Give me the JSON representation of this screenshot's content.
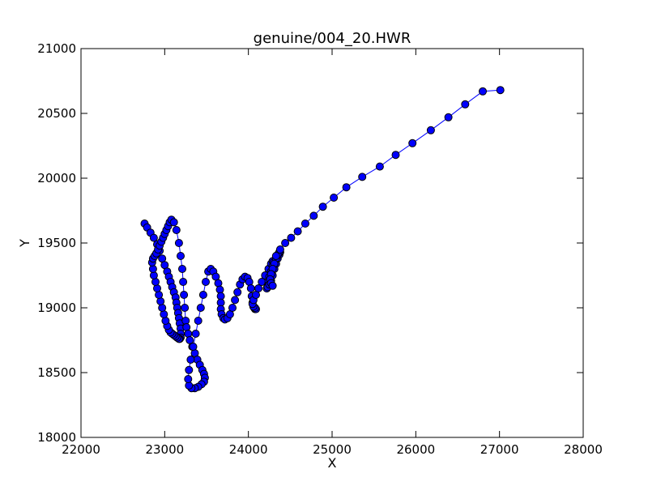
{
  "chart_data": {
    "type": "line",
    "title": "genuine/004_20.HWR",
    "xlabel": "X",
    "ylabel": "Y",
    "xlim": [
      22000,
      28000
    ],
    "ylim": [
      18000,
      21000
    ],
    "xticks": [
      "22000",
      "23000",
      "24000",
      "25000",
      "26000",
      "27000",
      "28000"
    ],
    "yticks": [
      "18000",
      "18500",
      "19000",
      "19500",
      "20000",
      "20500",
      "21000"
    ],
    "grid": false,
    "legend": "none",
    "line_color": "#0000ff",
    "marker_color": "#0000ff",
    "marker_edge": "#000000",
    "series": [
      {
        "x": [
          22760,
          22790,
          22830,
          22870,
          22910,
          22940,
          22970,
          23000,
          23030,
          23050,
          23070,
          23090,
          23110,
          23130,
          23140,
          23150,
          23160,
          23170,
          23180,
          23190,
          23190,
          23190,
          23180,
          23170,
          23150,
          23130,
          23110,
          23090,
          23070,
          23050,
          23030,
          23010,
          22990,
          22970,
          22950,
          22930,
          22910,
          22890,
          22870,
          22860,
          22850,
          22860,
          22880,
          22900,
          22920,
          22940,
          22960,
          22980,
          23000,
          23020,
          23040,
          23060,
          23080,
          23110,
          23140,
          23170,
          23190,
          23210,
          23220,
          23230,
          23240,
          23250,
          23260,
          23280,
          23300,
          23330,
          23360,
          23390,
          23420,
          23450,
          23470,
          23480,
          23470,
          23440,
          23400,
          23360,
          23320,
          23290,
          23280,
          23290,
          23310,
          23340,
          23370,
          23400,
          23430,
          23460,
          23490,
          23520,
          23550,
          23580,
          23610,
          23640,
          23660,
          23670,
          23670,
          23670,
          23680,
          23700,
          23720,
          23750,
          23780,
          23810,
          23840,
          23870,
          23900,
          23930,
          23960,
          23990,
          24010,
          24030,
          24040,
          24050,
          24060,
          24070,
          24080,
          24090,
          24080,
          24060,
          24050,
          24060,
          24090,
          24120,
          24160,
          24200,
          24240,
          24270,
          24290,
          24300,
          24290,
          24270,
          24250,
          24240,
          24230,
          24220,
          24220,
          24230,
          24250,
          24270,
          24290,
          24310,
          24330,
          24350,
          24370,
          24380,
          24370,
          24350,
          24330,
          24310,
          24290,
          24270,
          24260,
          24270,
          24290,
          24330,
          24380,
          24440,
          24510,
          24590,
          24680,
          24780,
          24890,
          25020,
          25170,
          25360,
          25570,
          25760,
          25960,
          26180,
          26390,
          26590,
          26800,
          27010
        ],
        "y": [
          19650,
          19620,
          19580,
          19540,
          19490,
          19440,
          19380,
          19330,
          19280,
          19240,
          19200,
          19160,
          19120,
          19080,
          19040,
          19000,
          18960,
          18920,
          18880,
          18840,
          18800,
          18770,
          18760,
          18760,
          18770,
          18780,
          18790,
          18800,
          18810,
          18830,
          18860,
          18900,
          18950,
          19000,
          19050,
          19100,
          19150,
          19200,
          19250,
          19300,
          19350,
          19380,
          19400,
          19420,
          19450,
          19480,
          19510,
          19540,
          19570,
          19600,
          19630,
          19660,
          19680,
          19660,
          19600,
          19500,
          19400,
          19300,
          19200,
          19100,
          19000,
          18900,
          18850,
          18800,
          18750,
          18700,
          18650,
          18600,
          18560,
          18520,
          18490,
          18460,
          18430,
          18410,
          18390,
          18380,
          18380,
          18400,
          18450,
          18520,
          18600,
          18700,
          18800,
          18900,
          19000,
          19100,
          19200,
          19280,
          19300,
          19280,
          19240,
          19190,
          19140,
          19090,
          19040,
          18990,
          18950,
          18920,
          18910,
          18920,
          18950,
          19000,
          19060,
          19120,
          19180,
          19220,
          19240,
          19230,
          19200,
          19150,
          19090,
          19040,
          19010,
          19000,
          18990,
          18990,
          19000,
          19010,
          19030,
          19060,
          19100,
          19150,
          19200,
          19250,
          19300,
          19340,
          19360,
          19350,
          19320,
          19280,
          19240,
          19200,
          19170,
          19150,
          19150,
          19160,
          19180,
          19210,
          19250,
          19300,
          19340,
          19380,
          19410,
          19430,
          19430,
          19410,
          19380,
          19340,
          19300,
          19260,
          19220,
          19190,
          19170,
          19400,
          19450,
          19500,
          19540,
          19590,
          19650,
          19710,
          19780,
          19850,
          19930,
          20010,
          20090,
          20180,
          20270,
          20370,
          20470,
          20570,
          20670,
          20680
        ]
      }
    ]
  }
}
